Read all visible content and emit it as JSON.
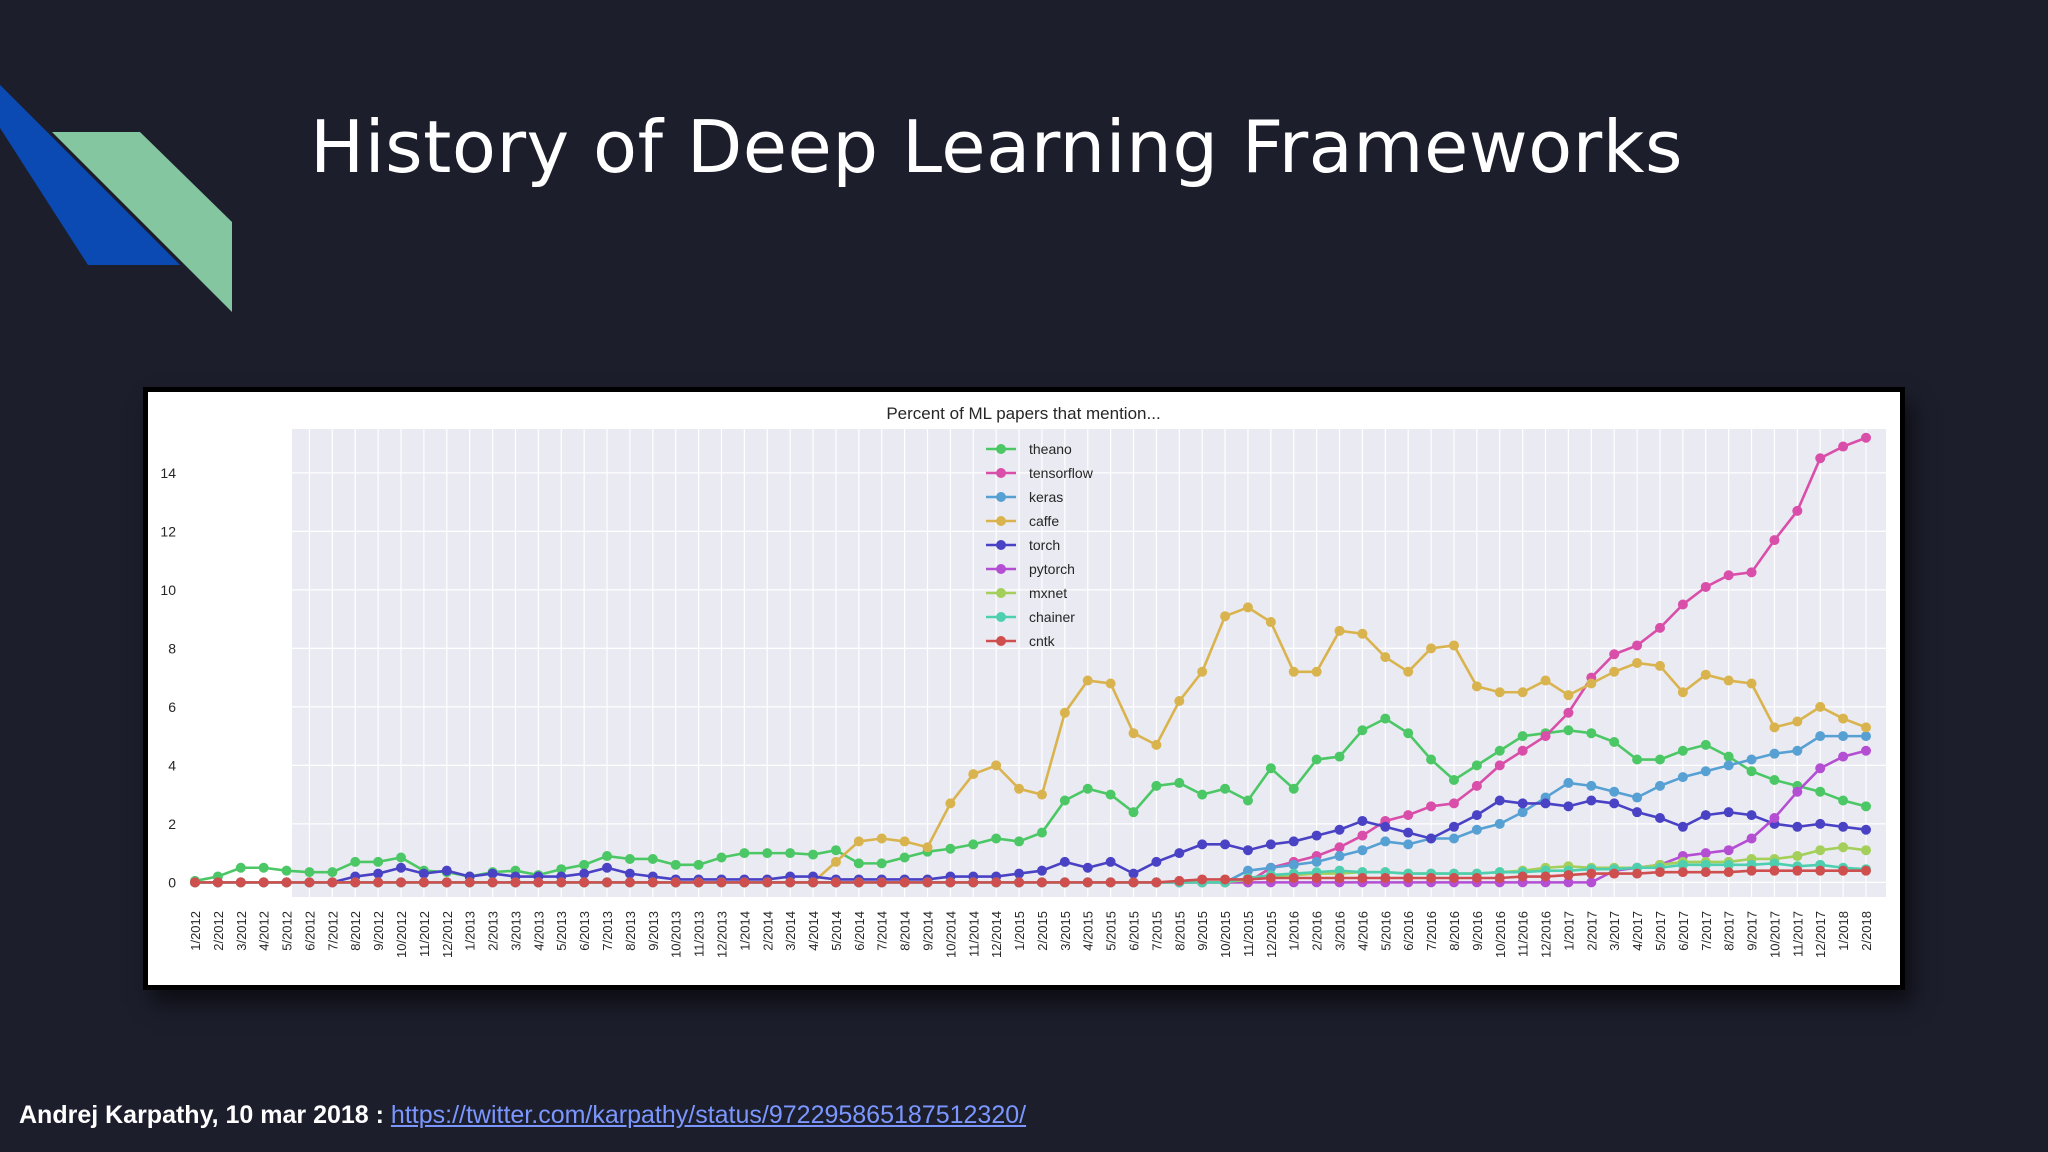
{
  "slide": {
    "title": "History of Deep Learning Frameworks",
    "footer_text": "Andrej Karpathy, 10 mar 2018 : ",
    "footer_link": "https://twitter.com/karpathy/status/972295865187512320/"
  },
  "colors": {
    "background": "#1c1e2c",
    "deco_blue": "#0b49b3",
    "deco_green": "#83c6a0",
    "link": "#7b97ff"
  },
  "chart_data": {
    "type": "line",
    "title": "Percent of ML papers that mention...",
    "xlabel": "",
    "ylabel": "",
    "ylim": [
      -0.5,
      15.5
    ],
    "yticks": [
      0,
      2,
      4,
      6,
      8,
      10,
      12,
      14
    ],
    "grid": true,
    "legend_position": "top-center",
    "categories": [
      "1/2012",
      "2/2012",
      "3/2012",
      "4/2012",
      "5/2012",
      "6/2012",
      "7/2012",
      "8/2012",
      "9/2012",
      "10/2012",
      "11/2012",
      "12/2012",
      "1/2013",
      "2/2013",
      "3/2013",
      "4/2013",
      "5/2013",
      "6/2013",
      "7/2013",
      "8/2013",
      "9/2013",
      "10/2013",
      "11/2013",
      "12/2013",
      "1/2014",
      "2/2014",
      "3/2014",
      "4/2014",
      "5/2014",
      "6/2014",
      "7/2014",
      "8/2014",
      "9/2014",
      "10/2014",
      "11/2014",
      "12/2014",
      "1/2015",
      "2/2015",
      "3/2015",
      "4/2015",
      "5/2015",
      "6/2015",
      "7/2015",
      "8/2015",
      "9/2015",
      "10/2015",
      "11/2015",
      "12/2015",
      "1/2016",
      "2/2016",
      "3/2016",
      "4/2016",
      "5/2016",
      "6/2016",
      "7/2016",
      "8/2016",
      "9/2016",
      "10/2016",
      "11/2016",
      "12/2016",
      "1/2017",
      "2/2017",
      "3/2017",
      "4/2017",
      "5/2017",
      "6/2017",
      "7/2017",
      "8/2017",
      "9/2017",
      "10/2017",
      "11/2017",
      "12/2017",
      "1/2018",
      "2/2018"
    ],
    "series": [
      {
        "name": "theano",
        "color": "#4cc766",
        "values": [
          0.05,
          0.2,
          0.5,
          0.5,
          0.4,
          0.35,
          0.35,
          0.7,
          0.7,
          0.85,
          0.4,
          0.35,
          0.2,
          0.35,
          0.4,
          0.25,
          0.45,
          0.6,
          0.9,
          0.8,
          0.8,
          0.6,
          0.6,
          0.85,
          1.0,
          1.0,
          1.0,
          0.95,
          1.1,
          0.65,
          0.65,
          0.85,
          1.05,
          1.15,
          1.3,
          1.5,
          1.4,
          1.7,
          2.8,
          3.2,
          3.0,
          2.4,
          3.3,
          3.4,
          3.0,
          3.2,
          2.8,
          3.9,
          3.2,
          4.2,
          4.3,
          5.2,
          5.6,
          5.1,
          4.2,
          3.5,
          4.0,
          4.5,
          5.0,
          5.1,
          5.2,
          5.1,
          4.8,
          4.2,
          4.2,
          4.5,
          4.7,
          4.3,
          3.8,
          3.5,
          3.3,
          3.1,
          2.8,
          2.6
        ]
      },
      {
        "name": "tensorflow",
        "color": "#d94ea8",
        "values": [
          0,
          0,
          0,
          0,
          0,
          0,
          0,
          0,
          0,
          0,
          0,
          0,
          0,
          0,
          0,
          0,
          0,
          0,
          0,
          0,
          0,
          0,
          0,
          0,
          0,
          0,
          0,
          0,
          0,
          0,
          0,
          0,
          0,
          0,
          0,
          0,
          0,
          0,
          0,
          0,
          0,
          0,
          0,
          0,
          0,
          0,
          0,
          0.5,
          0.7,
          0.9,
          1.2,
          1.6,
          2.1,
          2.3,
          2.6,
          2.7,
          3.3,
          4.0,
          4.5,
          5.0,
          5.8,
          7.0,
          7.8,
          8.1,
          8.7,
          9.5,
          10.1,
          10.5,
          10.6,
          11.7,
          12.7,
          14.5,
          14.9,
          15.2
        ]
      },
      {
        "name": "keras",
        "color": "#56a0d3",
        "values": [
          0,
          0,
          0,
          0,
          0,
          0,
          0,
          0,
          0,
          0,
          0,
          0,
          0,
          0,
          0,
          0,
          0,
          0,
          0,
          0,
          0,
          0,
          0,
          0,
          0,
          0,
          0,
          0,
          0,
          0,
          0,
          0,
          0,
          0,
          0,
          0,
          0,
          0,
          0,
          0,
          0,
          0,
          0,
          0,
          0,
          0,
          0.4,
          0.5,
          0.6,
          0.7,
          0.9,
          1.1,
          1.4,
          1.3,
          1.5,
          1.5,
          1.8,
          2.0,
          2.4,
          2.9,
          3.4,
          3.3,
          3.1,
          2.9,
          3.3,
          3.6,
          3.8,
          4.0,
          4.2,
          4.4,
          4.5,
          5.0,
          5.0,
          5.0
        ]
      },
      {
        "name": "caffe",
        "color": "#d9b44e",
        "values": [
          0,
          0,
          0,
          0,
          0,
          0,
          0,
          0,
          0,
          0,
          0,
          0,
          0,
          0,
          0,
          0,
          0,
          0,
          0,
          0,
          0,
          0,
          0,
          0,
          0,
          0,
          0,
          0,
          0.7,
          1.4,
          1.5,
          1.4,
          1.2,
          2.7,
          3.7,
          4.0,
          3.2,
          3.0,
          5.8,
          6.9,
          6.8,
          5.1,
          4.7,
          6.2,
          7.2,
          9.1,
          9.4,
          8.9,
          7.2,
          7.2,
          8.6,
          8.5,
          7.7,
          7.2,
          8.0,
          8.1,
          6.7,
          6.5,
          6.5,
          6.9,
          6.4,
          6.8,
          7.2,
          7.5,
          7.4,
          6.5,
          7.1,
          6.9,
          6.8,
          5.3,
          5.5,
          6.0,
          5.6,
          5.3
        ]
      },
      {
        "name": "torch",
        "color": "#4a42c4",
        "values": [
          0,
          0,
          0,
          0,
          0,
          0,
          0,
          0.2,
          0.3,
          0.5,
          0.3,
          0.4,
          0.2,
          0.3,
          0.2,
          0.2,
          0.2,
          0.3,
          0.5,
          0.3,
          0.2,
          0.1,
          0.1,
          0.1,
          0.1,
          0.1,
          0.2,
          0.2,
          0.1,
          0.1,
          0.1,
          0.1,
          0.1,
          0.2,
          0.2,
          0.2,
          0.3,
          0.4,
          0.7,
          0.5,
          0.7,
          0.3,
          0.7,
          1.0,
          1.3,
          1.3,
          1.1,
          1.3,
          1.4,
          1.6,
          1.8,
          2.1,
          1.9,
          1.7,
          1.5,
          1.9,
          2.3,
          2.8,
          2.7,
          2.7,
          2.6,
          2.8,
          2.7,
          2.4,
          2.2,
          1.9,
          2.3,
          2.4,
          2.3,
          2.0,
          1.9,
          2.0,
          1.9,
          1.8
        ]
      },
      {
        "name": "pytorch",
        "color": "#b44ed3",
        "values": [
          0,
          0,
          0,
          0,
          0,
          0,
          0,
          0,
          0,
          0,
          0,
          0,
          0,
          0,
          0,
          0,
          0,
          0,
          0,
          0,
          0,
          0,
          0,
          0,
          0,
          0,
          0,
          0,
          0,
          0,
          0,
          0,
          0,
          0,
          0,
          0,
          0,
          0,
          0,
          0,
          0,
          0,
          0,
          0,
          0,
          0,
          0,
          0,
          0,
          0,
          0,
          0,
          0,
          0,
          0,
          0,
          0,
          0,
          0,
          0,
          0,
          0,
          0.4,
          0.5,
          0.6,
          0.9,
          1.0,
          1.1,
          1.5,
          2.2,
          3.1,
          3.9,
          4.3,
          4.5
        ]
      },
      {
        "name": "mxnet",
        "color": "#a3cf5a",
        "values": [
          0,
          0,
          0,
          0,
          0,
          0,
          0,
          0,
          0,
          0,
          0,
          0,
          0,
          0,
          0,
          0,
          0,
          0,
          0,
          0,
          0,
          0,
          0,
          0,
          0,
          0,
          0,
          0,
          0,
          0,
          0,
          0,
          0,
          0,
          0,
          0,
          0,
          0,
          0,
          0,
          0,
          0,
          0,
          0,
          0,
          0,
          0.1,
          0.2,
          0.25,
          0.3,
          0.3,
          0.35,
          0.35,
          0.3,
          0.3,
          0.3,
          0.3,
          0.35,
          0.4,
          0.5,
          0.55,
          0.5,
          0.5,
          0.5,
          0.6,
          0.7,
          0.7,
          0.7,
          0.8,
          0.8,
          0.9,
          1.1,
          1.2,
          1.1
        ]
      },
      {
        "name": "chainer",
        "color": "#4ecfb0",
        "values": [
          0,
          0,
          0,
          0,
          0,
          0,
          0,
          0,
          0,
          0,
          0,
          0,
          0,
          0,
          0,
          0,
          0,
          0,
          0,
          0,
          0,
          0,
          0,
          0,
          0,
          0,
          0,
          0,
          0,
          0,
          0,
          0,
          0,
          0,
          0,
          0,
          0,
          0,
          0,
          0,
          0,
          0,
          0,
          0,
          0,
          0,
          0.15,
          0.25,
          0.3,
          0.35,
          0.4,
          0.35,
          0.35,
          0.3,
          0.3,
          0.3,
          0.3,
          0.35,
          0.35,
          0.4,
          0.4,
          0.45,
          0.45,
          0.5,
          0.5,
          0.6,
          0.6,
          0.6,
          0.6,
          0.65,
          0.55,
          0.6,
          0.5,
          0.45
        ]
      },
      {
        "name": "cntk",
        "color": "#cf4e4e",
        "values": [
          0,
          0,
          0,
          0,
          0,
          0,
          0,
          0,
          0,
          0,
          0,
          0,
          0,
          0,
          0,
          0,
          0,
          0,
          0,
          0,
          0,
          0,
          0,
          0,
          0,
          0,
          0,
          0,
          0,
          0,
          0,
          0,
          0,
          0,
          0,
          0,
          0,
          0,
          0,
          0,
          0,
          0,
          0,
          0.05,
          0.1,
          0.1,
          0.1,
          0.15,
          0.15,
          0.15,
          0.15,
          0.15,
          0.15,
          0.15,
          0.15,
          0.15,
          0.15,
          0.15,
          0.2,
          0.2,
          0.25,
          0.3,
          0.3,
          0.3,
          0.35,
          0.35,
          0.35,
          0.35,
          0.4,
          0.4,
          0.4,
          0.4,
          0.4,
          0.4
        ]
      }
    ]
  }
}
